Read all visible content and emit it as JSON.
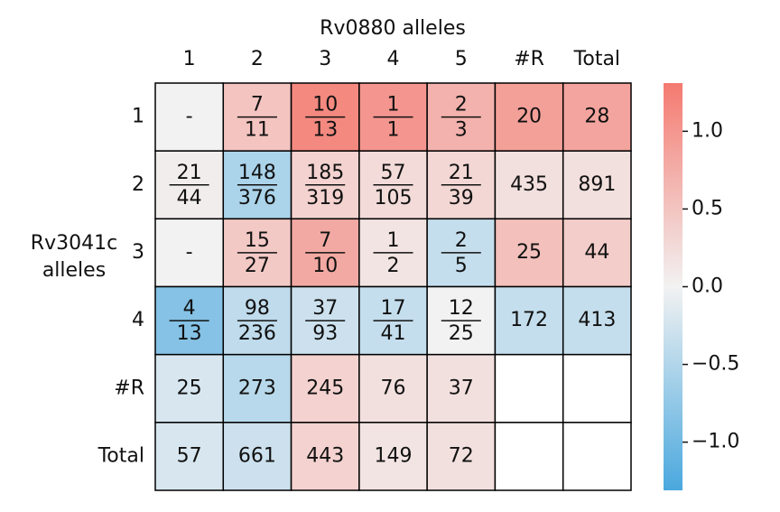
{
  "chart_data": {
    "type": "heatmap",
    "title": "Rv0880 alleles",
    "ylabel": [
      "Rv3041c",
      "alleles"
    ],
    "x_categories": [
      "1",
      "2",
      "3",
      "4",
      "5",
      "#R",
      "Total"
    ],
    "y_categories": [
      "1",
      "2",
      "3",
      "4",
      "#R",
      "Total"
    ],
    "values": [
      [
        null,
        0.5,
        1.15,
        1.0,
        0.7,
        0.9,
        0.85
      ],
      [
        0.05,
        -0.55,
        0.35,
        0.25,
        0.3,
        0.2,
        0.2
      ],
      [
        null,
        0.45,
        0.8,
        0.15,
        -0.35,
        0.55,
        0.4
      ],
      [
        -0.85,
        -0.4,
        -0.3,
        -0.35,
        0.0,
        -0.35,
        -0.35
      ],
      [
        -0.2,
        -0.45,
        0.35,
        0.2,
        0.2,
        null,
        null
      ],
      [
        -0.2,
        -0.3,
        0.35,
        0.15,
        0.2,
        null,
        null
      ]
    ],
    "value_labels": [
      [
        "-",
        [
          "7",
          "11"
        ],
        [
          "10",
          "13"
        ],
        [
          "1",
          "1"
        ],
        [
          "2",
          "3"
        ],
        "20",
        "28"
      ],
      [
        [
          "21",
          "44"
        ],
        [
          "148",
          "376"
        ],
        [
          "185",
          "319"
        ],
        [
          "57",
          "105"
        ],
        [
          "21",
          "39"
        ],
        "435",
        "891"
      ],
      [
        "-",
        [
          "15",
          "27"
        ],
        [
          "7",
          "10"
        ],
        [
          "1",
          "2"
        ],
        [
          "2",
          "5"
        ],
        "25",
        "44"
      ],
      [
        [
          "4",
          "13"
        ],
        [
          "98",
          "236"
        ],
        [
          "37",
          "93"
        ],
        [
          "17",
          "41"
        ],
        [
          "12",
          "25"
        ],
        "172",
        "413"
      ],
      [
        "25",
        "273",
        "245",
        "76",
        "37",
        null,
        null
      ],
      [
        "57",
        "661",
        "443",
        "149",
        "72",
        null,
        null
      ]
    ],
    "cmap": [
      "#4aa8de",
      "#f2f2f2",
      "#f47a70"
    ],
    "nan_color": "#f2f2f2",
    "clim": [
      -1.31,
      1.31
    ],
    "cticks": [
      {
        "value": -1.0,
        "label": "−1.0"
      },
      {
        "value": -0.5,
        "label": "−0.5"
      },
      {
        "value": 0,
        "label": "0.0"
      },
      {
        "value": 0.5,
        "label": "0.5"
      },
      {
        "value": 1.0,
        "label": "1.0"
      }
    ]
  }
}
